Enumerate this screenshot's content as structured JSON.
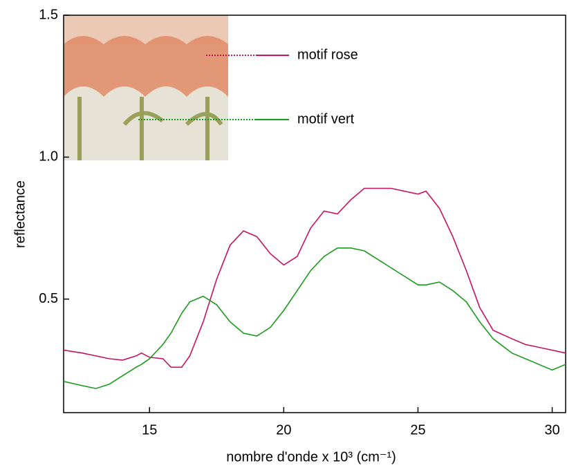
{
  "chart_data": {
    "type": "line",
    "xlabel": "nombre d'onde x 10³ (cm⁻¹)",
    "ylabel": "reflectance",
    "x": [
      11.8,
      12.5,
      13,
      13.5,
      14,
      14.5,
      14.7,
      15,
      15.5,
      15.8,
      16.2,
      16.5,
      17,
      17.5,
      18,
      18.5,
      19,
      19.5,
      20,
      20.5,
      21,
      21.5,
      22,
      22.5,
      23,
      24,
      25,
      25.3,
      25.8,
      26.3,
      26.8,
      27.3,
      27.8,
      28.5,
      29,
      29.5,
      30,
      30.5
    ],
    "series": [
      {
        "name": "motif rose",
        "color": "#c8105f",
        "values": [
          0.32,
          0.31,
          0.3,
          0.29,
          0.285,
          0.3,
          0.31,
          0.295,
          0.29,
          0.26,
          0.26,
          0.3,
          0.42,
          0.57,
          0.69,
          0.74,
          0.72,
          0.66,
          0.62,
          0.65,
          0.75,
          0.81,
          0.8,
          0.85,
          0.89,
          0.89,
          0.87,
          0.88,
          0.82,
          0.72,
          0.6,
          0.47,
          0.39,
          0.36,
          0.34,
          0.33,
          0.32,
          0.31
        ]
      },
      {
        "name": "motif vert",
        "color": "#1a9a1a",
        "values": [
          0.21,
          0.195,
          0.185,
          0.2,
          0.23,
          0.26,
          0.27,
          0.29,
          0.34,
          0.38,
          0.45,
          0.49,
          0.51,
          0.48,
          0.42,
          0.38,
          0.37,
          0.4,
          0.46,
          0.53,
          0.6,
          0.65,
          0.68,
          0.68,
          0.67,
          0.61,
          0.55,
          0.55,
          0.56,
          0.53,
          0.49,
          0.42,
          0.36,
          0.31,
          0.29,
          0.27,
          0.25,
          0.27
        ]
      }
    ],
    "xlim": [
      11.8,
      30.5
    ],
    "ylim": [
      0.1,
      1.5
    ],
    "xticks": [
      15,
      20,
      25,
      30
    ],
    "yticks": [
      0.5,
      {
        "value": 1,
        "label": "1.0"
      },
      1.5
    ]
  }
}
